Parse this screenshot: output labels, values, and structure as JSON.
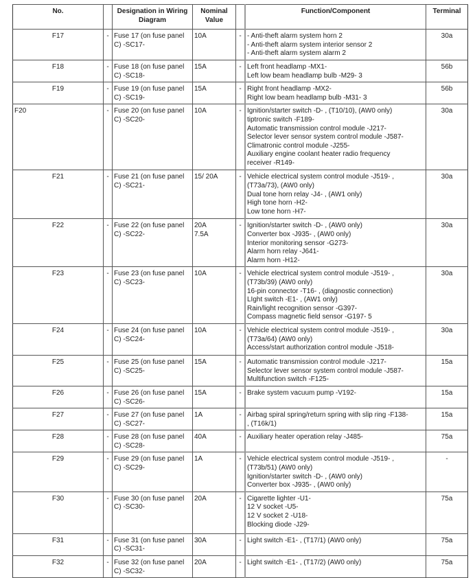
{
  "headers": {
    "no": "No.",
    "designation": "Designation in Wiring Diagram",
    "nominal": "Nominal Value",
    "function": "Function/Component",
    "terminal": "Terminal"
  },
  "rows": [
    {
      "no": "F17",
      "dash1": "-",
      "designation": "Fuse 17 (on fuse panel C) -SC17-",
      "nominal": [
        "10A"
      ],
      "dash2": "-",
      "function": [
        "- Anti-theft alarm system horn 2",
        "- Anti-theft alarm system interior sensor 2",
        "- Anti-theft alarm system alarm 2"
      ],
      "terminal": "30a"
    },
    {
      "no": "F18",
      "dash1": "-",
      "designation": "Fuse 18 (on fuse panel C) -SC18-",
      "nominal": [
        "15A"
      ],
      "dash2": "-",
      "function": [
        "Left front headlamp -MX1-",
        "Left low beam headlamp bulb -M29- 3"
      ],
      "terminal": "56b"
    },
    {
      "no": "F19",
      "dash1": "-",
      "designation": "Fuse 19 (on fuse panel C) -SC19-",
      "nominal": [
        "15A"
      ],
      "dash2": "-",
      "function": [
        "Right front headlamp -MX2-",
        "Right low beam headlamp bulb -M31- 3"
      ],
      "terminal": "56b"
    },
    {
      "no": "F20",
      "dash1": "-",
      "designation": "Fuse 20 (on fuse panel C) -SC20-",
      "nominal": [
        "10A"
      ],
      "dash2": "-",
      "function": [
        "Ignition/starter switch -D- , (T10/10), (AW0 only)",
        "tiptronic switch -F189-",
        "Automatic transmission control module -J217-",
        "Selector lever sensor system control module -J587-",
        "Climatronic control module -J255-",
        "Auxiliary engine coolant heater radio frequency",
        "receiver -R149-"
      ],
      "terminal": "30a"
    },
    {
      "no": "F21",
      "dash1": "-",
      "designation": "Fuse 21 (on fuse panel C) -SC21-",
      "nominal": [
        "15/ 20A"
      ],
      "dash2": "-",
      "function": [
        "Vehicle electrical system control module -J519- ,",
        "(T73a/73), (AW0 only)",
        "Dual tone horn relay -J4- , (AW1 only)",
        "High tone horn -H2-",
        "Low tone horn -H7-"
      ],
      "terminal": "30a"
    },
    {
      "no": "F22",
      "dash1": "-",
      "designation": "Fuse 22 (on fuse panel C) -SC22-",
      "nominal": [
        "20A",
        "7.5A"
      ],
      "dash2": "-",
      "function": [
        "Ignition/starter switch -D- , (AW0 only)",
        "Converter box -J935- , (AW0 only)",
        "Interior monitoring sensor -G273-",
        "Alarm horn relay -J641-",
        "Alarm horn -H12-"
      ],
      "terminal": "30a"
    },
    {
      "no": "F23",
      "dash1": "-",
      "designation": "Fuse 23 (on fuse panel C) -SC23-",
      "nominal": [
        "10A"
      ],
      "dash2": "-",
      "function": [
        "Vehicle electrical system control module -J519- ,",
        "(T73b/39) (AW0 only)",
        "16-pin connector -T16- , (diagnostic connection)",
        "LIght switch -E1- , (AW1 only)",
        "Rain/light recognition sensor -G397-",
        "Compass magnetic field sensor -G197- 5"
      ],
      "terminal": "30a"
    },
    {
      "no": "F24",
      "dash1": "-",
      "designation": "Fuse 24 (on fuse panel C) -SC24-",
      "nominal": [
        "10A"
      ],
      "dash2": "-",
      "function": [
        "Vehicle electrical system control module -J519- ,",
        "(T73a/64) (AW0 only)",
        "Access/start authorization control module -J518-"
      ],
      "terminal": "30a"
    },
    {
      "no": "F25",
      "dash1": "-",
      "designation": "Fuse 25 (on fuse panel C) -SC25-",
      "nominal": [
        "15A"
      ],
      "dash2": "-",
      "function": [
        "Automatic transmission control module -J217-",
        "Selector lever sensor system control module -J587-",
        "Multifunction switch -F125-"
      ],
      "terminal": "15a"
    },
    {
      "no": "F26",
      "dash1": "-",
      "designation": "Fuse 26 (on fuse panel C) -SC26-",
      "nominal": [
        "15A"
      ],
      "dash2": "-",
      "function": [
        "Brake system vacuum pump -V192-"
      ],
      "terminal": "15a"
    },
    {
      "no": "F27",
      "dash1": "-",
      "designation": "Fuse 27 (on fuse panel C) -SC27-",
      "nominal": [
        "1A"
      ],
      "dash2": "-",
      "function": [
        "Airbag spiral spring/return spring with slip ring -F138-",
        ", (T16k/1)"
      ],
      "terminal": "15a"
    },
    {
      "no": "F28",
      "dash1": "-",
      "designation": "Fuse 28 (on fuse panel C) -SC28-",
      "nominal": [
        "40A"
      ],
      "dash2": "-",
      "function": [
        "Auxiliary heater operation relay -J485-"
      ],
      "terminal": "75a"
    },
    {
      "no": "F29",
      "dash1": "-",
      "designation": "Fuse 29 (on fuse panel C) -SC29-",
      "nominal": [
        "1A"
      ],
      "dash2": "-",
      "function": [
        "Vehicle electrical system control module -J519- ,",
        "(T73b/51) (AW0 only)",
        "Ignition/starter switch -D- , (AW0 only)",
        "Converter box -J935- , (AW0 only)"
      ],
      "terminal": "-"
    },
    {
      "no": "F30",
      "dash1": "-",
      "designation": "Fuse 30 (on fuse panel C) -SC30-",
      "nominal": [
        "20A"
      ],
      "dash2": "-",
      "function": [
        "Cigarette lighter -U1-",
        "12 V socket -U5-",
        "12 V socket 2 -U18-",
        "Blocking diode -J29-"
      ],
      "terminal": "75a"
    },
    {
      "no": "F31",
      "dash1": "-",
      "designation": "Fuse 31 (on fuse panel C) -SC31-",
      "nominal": [
        "30A"
      ],
      "dash2": "-",
      "function": [
        "Light switch -E1- , (T17/1) (AW0 only)"
      ],
      "terminal": "75a"
    },
    {
      "no": "F32",
      "dash1": "-",
      "designation": "Fuse 32 (on fuse panel C) -SC32-",
      "nominal": [
        "20A"
      ],
      "dash2": "-",
      "function": [
        "Light switch -E1- , (T17/2) (AW0 only)"
      ],
      "terminal": "75a"
    }
  ]
}
